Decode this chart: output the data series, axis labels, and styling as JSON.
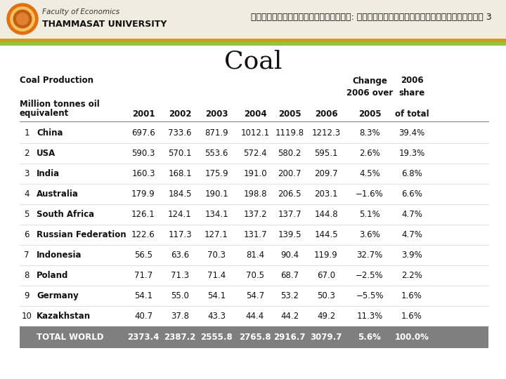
{
  "title": "Coal",
  "header_label": "Coal Production",
  "change_label": "Change",
  "year2006_label": "2006",
  "over_label": "2006 over",
  "share_label": "share",
  "mtoe_line1": "Million tonnes oil",
  "mtoe_line2": "equivalent",
  "col_years": [
    "2001",
    "2002",
    "2003",
    "2004",
    "2005",
    "2006"
  ],
  "col_change_sub": "2005",
  "col_share_sub": "of total",
  "rows": [
    {
      "num": "1",
      "name": "China",
      "vals": [
        "697.6",
        "733.6",
        "871.9",
        "1012.1",
        "1119.8",
        "1212.3",
        "8.3%",
        "39.4%"
      ]
    },
    {
      "num": "2",
      "name": "USA",
      "vals": [
        "590.3",
        "570.1",
        "553.6",
        "572.4",
        "580.2",
        "595.1",
        "2.6%",
        "19.3%"
      ]
    },
    {
      "num": "3",
      "name": "India",
      "vals": [
        "160.3",
        "168.1",
        "175.9",
        "191.0",
        "200.7",
        "209.7",
        "4.5%",
        "6.8%"
      ]
    },
    {
      "num": "4",
      "name": "Australia",
      "vals": [
        "179.9",
        "184.5",
        "190.1",
        "198.8",
        "206.5",
        "203.1",
        "−1.6%",
        "6.6%"
      ]
    },
    {
      "num": "5",
      "name": "South Africa",
      "vals": [
        "126.1",
        "124.1",
        "134.1",
        "137.2",
        "137.7",
        "144.8",
        "5.1%",
        "4.7%"
      ]
    },
    {
      "num": "6",
      "name": "Russian Federation",
      "vals": [
        "122.6",
        "117.3",
        "127.1",
        "131.7",
        "139.5",
        "144.5",
        "3.6%",
        "4.7%"
      ]
    },
    {
      "num": "7",
      "name": "Indonesia",
      "vals": [
        "56.5",
        "63.6",
        "70.3",
        "81.4",
        "90.4",
        "119.9",
        "32.7%",
        "3.9%"
      ]
    },
    {
      "num": "8",
      "name": "Poland",
      "vals": [
        "71.7",
        "71.3",
        "71.4",
        "70.5",
        "68.7",
        "67.0",
        "−2.5%",
        "2.2%"
      ]
    },
    {
      "num": "9",
      "name": "Germany",
      "vals": [
        "54.1",
        "55.0",
        "54.1",
        "54.7",
        "53.2",
        "50.3",
        "−5.5%",
        "1.6%"
      ]
    },
    {
      "num": "10",
      "name": "Kazakhstan",
      "vals": [
        "40.7",
        "37.8",
        "43.3",
        "44.4",
        "44.2",
        "49.2",
        "11.3%",
        "1.6%"
      ]
    }
  ],
  "total_row": {
    "name": "TOTAL WORLD",
    "vals": [
      "2373.4",
      "2387.2",
      "2555.8",
      "2765.8",
      "2916.7",
      "3079.7",
      "5.6%",
      "100.0%"
    ]
  },
  "total_bg": "#7f7f7f",
  "total_text": "#ffffff",
  "top_bar_bg": "#f0ede0",
  "gold_stripe": "#c8a020",
  "green_stripe": "#8dc63f",
  "title_fontsize": 26,
  "header_fontsize": 8.5,
  "body_fontsize": 8.5
}
